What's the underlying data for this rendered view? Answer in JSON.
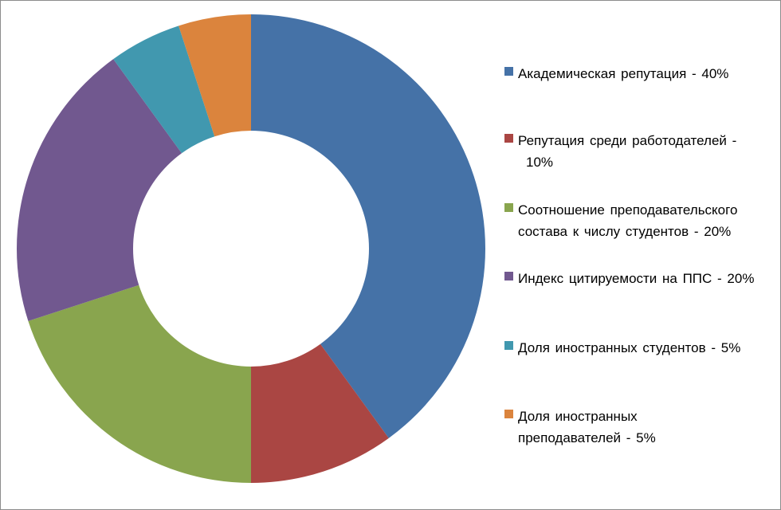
{
  "chart_data": {
    "type": "pie",
    "variant": "donut",
    "title": "",
    "categories": [
      "Академическая репутация - 40%",
      "Репутация среди работодателей - 10%",
      "Соотношение преподавательского состава к числу студентов - 20%",
      "Индекс цитируемости на ППС - 20%",
      "Доля иностранных студентов - 5%",
      "Доля иностранных преподавателей - 5%"
    ],
    "values": [
      40,
      10,
      20,
      20,
      5,
      5
    ],
    "colors": [
      "#4572A7",
      "#AA4643",
      "#89A54E",
      "#71588F",
      "#4198AF",
      "#DB843D"
    ],
    "legend_position": "right",
    "start_angle_direction": "clockwise-from-top"
  },
  "legend": {
    "items": [
      {
        "lines": [
          "Академическая репутация - 40%"
        ]
      },
      {
        "lines": [
          "Репутация среди работодателей -",
          "10%"
        ]
      },
      {
        "lines": [
          "Соотношение преподавательского",
          "состава к числу студентов - 20%"
        ]
      },
      {
        "lines": [
          "Индекс цитируемости на ППС - 20%"
        ]
      },
      {
        "lines": [
          "Доля иностранных студентов - 5%"
        ]
      },
      {
        "lines": [
          "Доля иностранных",
          "преподавателей - 5%"
        ]
      }
    ]
  }
}
